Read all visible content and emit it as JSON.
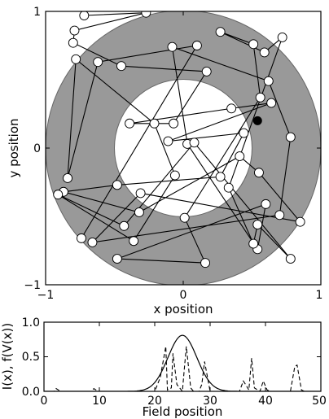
{
  "chart_data": [
    {
      "type": "scatter",
      "xlabel": "x position",
      "ylabel": "y position",
      "xlim": [
        -1,
        1
      ],
      "ylim": [
        -1,
        1
      ],
      "xticks": [
        -1,
        0,
        1
      ],
      "yticks": [
        -1,
        0,
        1
      ],
      "xtick_labels": [
        "−1",
        "0",
        "1"
      ],
      "ytick_labels": [
        "−1",
        "0",
        "1"
      ],
      "annulus": {
        "outer_radius": 1.0,
        "inner_radius": 0.5,
        "center": [
          0,
          0
        ],
        "fill": "#999999"
      },
      "colors": {
        "ring": "#999999",
        "line": "#000000",
        "marker_fill": "#ffffff",
        "marker_edge": "#000000",
        "current": "#000000"
      },
      "path": [
        [
          -0.72,
          0.97
        ],
        [
          -0.27,
          0.99
        ],
        [
          -0.79,
          0.86
        ],
        [
          -0.8,
          0.77
        ],
        [
          -0.45,
          0.6
        ],
        [
          0.17,
          0.56
        ],
        [
          -0.07,
          0.18
        ],
        [
          -0.39,
          0.18
        ],
        [
          0.35,
          0.29
        ],
        [
          0.64,
          0.33
        ],
        [
          -0.11,
          0.05
        ],
        [
          0.44,
          0.11
        ],
        [
          0.27,
          -0.21
        ],
        [
          -0.48,
          -0.27
        ],
        [
          -0.87,
          -0.32
        ],
        [
          -0.32,
          -0.47
        ],
        [
          0.41,
          -0.06
        ],
        [
          0.55,
          -0.18
        ],
        [
          0.85,
          -0.54
        ],
        [
          -0.31,
          -0.33
        ],
        [
          -0.66,
          -0.69
        ],
        [
          0.7,
          -0.49
        ],
        [
          0.78,
          0.08
        ],
        [
          0.62,
          0.49
        ],
        [
          -0.08,
          0.74
        ],
        [
          0.03,
          0.03
        ],
        [
          0.54,
          -0.74
        ],
        [
          0.6,
          -0.41
        ],
        [
          -0.48,
          -0.81
        ],
        [
          0.16,
          -0.84
        ],
        [
          0.01,
          -0.51
        ],
        [
          0.56,
          0.37
        ],
        [
          0.51,
          0.76
        ],
        [
          0.27,
          0.85
        ],
        [
          0.59,
          0.7
        ],
        [
          0.72,
          0.81
        ],
        [
          0.33,
          -0.29
        ],
        [
          0.51,
          -0.7
        ],
        [
          0.54,
          -0.56
        ],
        [
          0.78,
          -0.81
        ],
        [
          0.08,
          0.04
        ],
        [
          -0.43,
          -0.57
        ],
        [
          -0.91,
          -0.34
        ],
        [
          -0.36,
          -0.68
        ],
        [
          -0.06,
          -0.2
        ],
        [
          -0.21,
          0.18
        ],
        [
          -0.78,
          0.65
        ],
        [
          -0.84,
          -0.22
        ],
        [
          -0.62,
          0.63
        ],
        [
          0.1,
          0.75
        ],
        [
          -0.74,
          -0.66
        ]
      ],
      "current_position": [
        0.54,
        0.2
      ]
    },
    {
      "type": "line",
      "xlabel": "Field position",
      "ylabel": "I(x), f(V(x))",
      "xlim": [
        0,
        50
      ],
      "ylim": [
        0,
        1.0
      ],
      "xticks": [
        0,
        10,
        20,
        30,
        40,
        50
      ],
      "yticks": [
        0,
        0.5,
        1.0
      ],
      "xtick_labels": [
        "0",
        "10",
        "20",
        "30",
        "40",
        "50"
      ],
      "ytick_labels": [
        "0.0",
        "0.5",
        "1.0"
      ],
      "series": [
        {
          "style": "solid",
          "peak_center": 25,
          "peak_height": 0.81,
          "peak_width": 2.6
        },
        {
          "style": "dashed",
          "x": [
            0,
            1.8,
            2.2,
            2.6,
            3.0,
            8.6,
            9.0,
            9.4,
            9.8,
            20.0,
            21.0,
            22.0,
            22.3,
            23.0,
            23.3,
            24.0,
            25.0,
            25.3,
            25.7,
            26.5,
            27.0,
            28.0,
            28.5,
            29.0,
            30.0,
            35.3,
            36.0,
            36.4,
            37.0,
            37.5,
            38.0,
            39.0,
            39.6,
            40.3,
            40.8,
            42.0,
            44.5,
            45.3,
            45.7,
            46.5,
            47.0,
            50
          ],
          "y": [
            0,
            0,
            0.04,
            0.02,
            0,
            0,
            0.04,
            0.02,
            0,
            0,
            0.2,
            0.65,
            0.02,
            0.05,
            0.55,
            0.1,
            0,
            0.28,
            0.65,
            0.05,
            0,
            0,
            0.1,
            0.43,
            0,
            0,
            0.15,
            0.1,
            0.02,
            0.48,
            0.05,
            0,
            0.15,
            0.02,
            0,
            0,
            0,
            0.36,
            0.38,
            0.02,
            0,
            0
          ]
        }
      ]
    }
  ]
}
